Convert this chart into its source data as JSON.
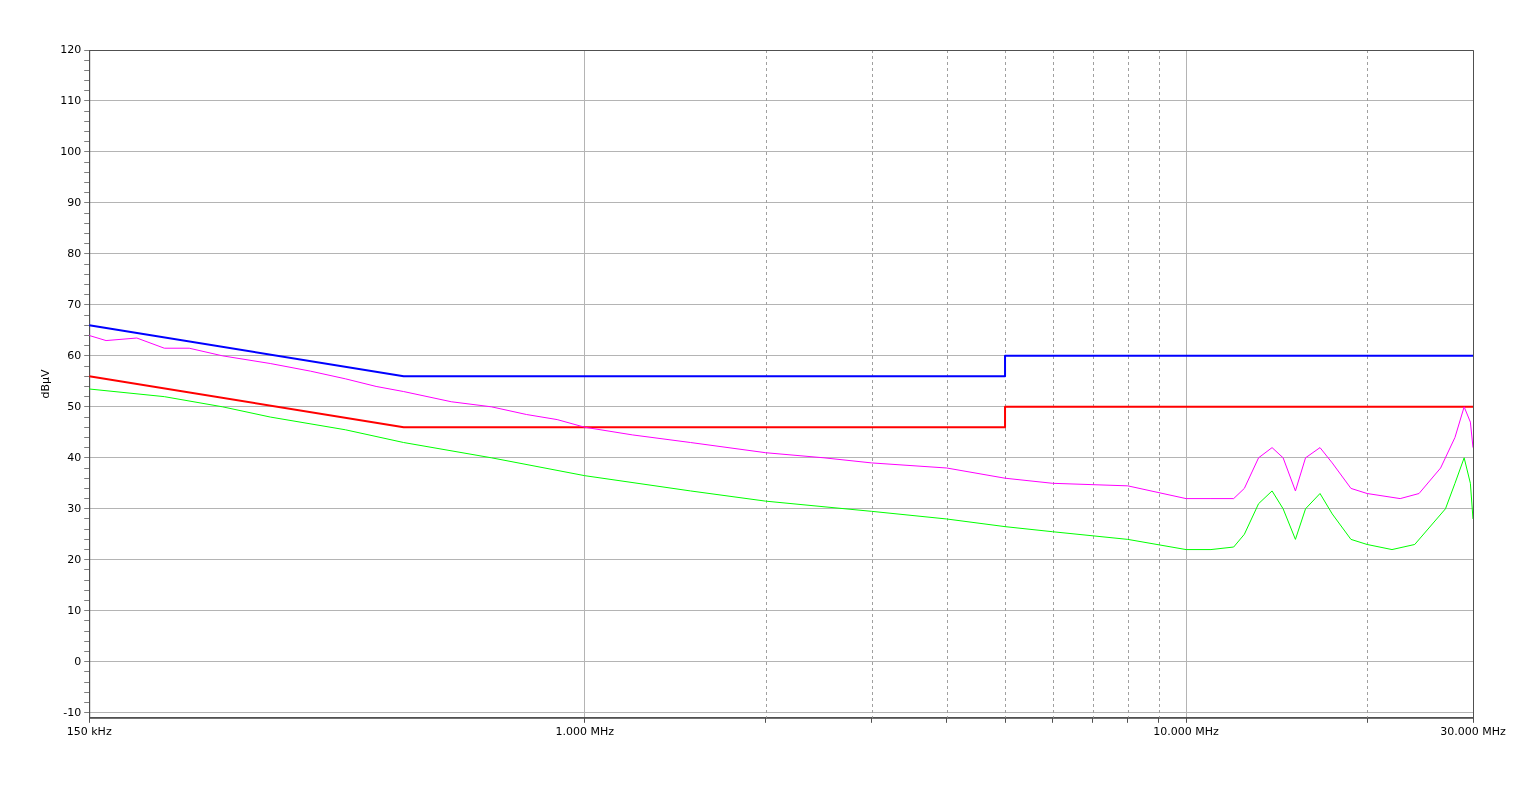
{
  "chart_data": {
    "type": "line",
    "ylabel": "dBµV",
    "log": "x",
    "grid": true,
    "legend": false,
    "marker": "none",
    "line_style": "solid",
    "xlim": [
      150,
      30000
    ],
    "ylim": [
      -11,
      120
    ],
    "xticks": [
      {
        "value": 150,
        "label": "150 kHz"
      },
      {
        "value": 1000,
        "label": "1.000 MHz"
      },
      {
        "value": 2000,
        "label": null
      },
      {
        "value": 3000,
        "label": null
      },
      {
        "value": 4000,
        "label": null
      },
      {
        "value": 5000,
        "label": null
      },
      {
        "value": 6000,
        "label": null
      },
      {
        "value": 7000,
        "label": null
      },
      {
        "value": 8000,
        "label": null
      },
      {
        "value": 9000,
        "label": null
      },
      {
        "value": 10000,
        "label": "10.000 MHz"
      },
      {
        "value": 20000,
        "label": null
      },
      {
        "value": 30000,
        "label": "30.000 MHz"
      }
    ],
    "yticks": [
      -10,
      {
        "value": -8,
        "label": null
      },
      {
        "value": -6,
        "label": null
      },
      {
        "value": -4,
        "label": null
      },
      {
        "value": -2,
        "label": null
      },
      0,
      {
        "value": 2,
        "label": null
      },
      {
        "value": 4,
        "label": null
      },
      {
        "value": 6,
        "label": null
      },
      {
        "value": 8,
        "label": null
      },
      10,
      {
        "value": 12,
        "label": null
      },
      {
        "value": 14,
        "label": null
      },
      {
        "value": 16,
        "label": null
      },
      {
        "value": 18,
        "label": null
      },
      20,
      {
        "value": 22,
        "label": null
      },
      {
        "value": 24,
        "label": null
      },
      {
        "value": 26,
        "label": null
      },
      {
        "value": 28,
        "label": null
      },
      30,
      {
        "value": 32,
        "label": null
      },
      {
        "value": 34,
        "label": null
      },
      {
        "value": 36,
        "label": null
      },
      {
        "value": 38,
        "label": null
      },
      40,
      {
        "value": 42,
        "label": null
      },
      {
        "value": 44,
        "label": null
      },
      {
        "value": 46,
        "label": null
      },
      {
        "value": 48,
        "label": null
      },
      50,
      {
        "value": 52,
        "label": null
      },
      {
        "value": 54,
        "label": null
      },
      {
        "value": 56,
        "label": null
      },
      {
        "value": 58,
        "label": null
      },
      60,
      {
        "value": 62,
        "label": null
      },
      {
        "value": 64,
        "label": null
      },
      {
        "value": 66,
        "label": null
      },
      {
        "value": 68,
        "label": null
      },
      70,
      {
        "value": 72,
        "label": null
      },
      {
        "value": 74,
        "label": null
      },
      {
        "value": 76,
        "label": null
      },
      {
        "value": 78,
        "label": null
      },
      80,
      {
        "value": 82,
        "label": null
      },
      {
        "value": 84,
        "label": null
      },
      {
        "value": 86,
        "label": null
      },
      {
        "value": 88,
        "label": null
      },
      90,
      {
        "value": 92,
        "label": null
      },
      {
        "value": 94,
        "label": null
      },
      {
        "value": 96,
        "label": null
      },
      {
        "value": 98,
        "label": null
      },
      100,
      {
        "value": 102,
        "label": null
      },
      {
        "value": 104,
        "label": null
      },
      {
        "value": 106,
        "label": null
      },
      {
        "value": 108,
        "label": null
      },
      110,
      {
        "value": 112,
        "label": null
      },
      {
        "value": 114,
        "label": null
      },
      {
        "value": 116,
        "label": null
      },
      {
        "value": 118,
        "label": null
      },
      120
    ],
    "series": [
      {
        "color": "#ff00ff",
        "x": [
          150,
          160,
          180,
          200,
          220,
          250,
          300,
          350,
          400,
          450,
          500,
          600,
          700,
          800,
          900,
          1000,
          1200,
          1500,
          2000,
          2500,
          3000,
          4000,
          5000,
          6000,
          8000,
          10000,
          11000,
          12000,
          12500,
          13200,
          13900,
          14500,
          15200,
          15800,
          16700,
          17500,
          18800,
          20000,
          22700,
          24400,
          26500,
          28000,
          29000,
          29700,
          30000
        ],
        "values": [
          64,
          63,
          63.5,
          61.5,
          61.5,
          60,
          58.5,
          57,
          55.5,
          54,
          53,
          51,
          50,
          48.5,
          47.5,
          46,
          44.5,
          43,
          41,
          40,
          39,
          38,
          36,
          35,
          34.5,
          32,
          32,
          32,
          34,
          40,
          42,
          40,
          33.5,
          40,
          42,
          39,
          34,
          33,
          32,
          33,
          38,
          44,
          50,
          47,
          42
        ]
      },
      {
        "color": "#00ff00",
        "x": [
          150,
          200,
          250,
          300,
          400,
          500,
          700,
          1000,
          1500,
          2000,
          3000,
          4000,
          5000,
          6000,
          8000,
          10000,
          11000,
          12000,
          12500,
          13200,
          13900,
          14500,
          15200,
          15800,
          16700,
          17500,
          18800,
          20000,
          22000,
          24000,
          27000,
          28000,
          29000,
          29700,
          30000
        ],
        "values": [
          53.5,
          52,
          50,
          48,
          45.5,
          43,
          40,
          36.5,
          33.5,
          31.5,
          29.5,
          28,
          26.5,
          25.5,
          24,
          22,
          22,
          22.5,
          25,
          31,
          33.5,
          30,
          24,
          30,
          33,
          29,
          24,
          23,
          22,
          23,
          30,
          35,
          40,
          35,
          28
        ]
      },
      {
        "color": "#0000ff",
        "x": [
          150,
          500,
          5000,
          5000,
          30000
        ],
        "values": [
          66,
          56,
          56,
          60,
          60
        ]
      },
      {
        "color": "#ff0000",
        "x": [
          150,
          500,
          5000,
          5000,
          30000
        ],
        "values": [
          56,
          46,
          46,
          50,
          50
        ]
      }
    ]
  }
}
